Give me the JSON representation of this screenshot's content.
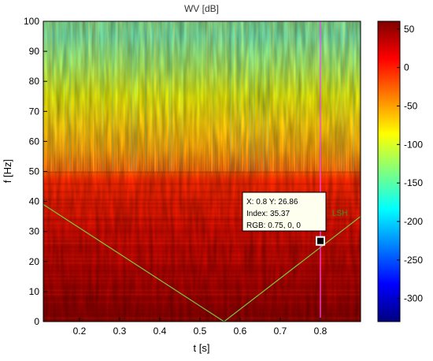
{
  "chart_data": {
    "type": "heatmap",
    "title": "WV [dB]",
    "xlabel": "t [s]",
    "ylabel": "f [Hz]",
    "xlim": [
      0.11,
      0.9
    ],
    "ylim": [
      0,
      100
    ],
    "x_ticks": [
      "0.2",
      "0.3",
      "0.4",
      "0.5",
      "0.6",
      "0.7",
      "0.8"
    ],
    "y_ticks": [
      "0",
      "10",
      "20",
      "30",
      "40",
      "50",
      "60",
      "70",
      "80",
      "90",
      "100"
    ],
    "colorbar": {
      "range": [
        -330,
        60
      ],
      "ticks": [
        "50",
        "0",
        "-50",
        "-100",
        "-150",
        "-200",
        "-250",
        "-300"
      ],
      "colormap": "jet"
    },
    "ridge_line": {
      "label": "LSH",
      "color": "#7cc63a",
      "points": [
        [
          0.11,
          39
        ],
        [
          0.56,
          0
        ],
        [
          0.9,
          35
        ]
      ]
    },
    "cursor": {
      "x": 0.8,
      "color": "#ff44ff"
    },
    "datatip": {
      "line1": "X: 0.8 Y: 26.86",
      "line2": "Index: 35.37",
      "line3": "RGB: 0.75, 0, 0",
      "point": [
        0.8,
        26.86
      ]
    }
  }
}
